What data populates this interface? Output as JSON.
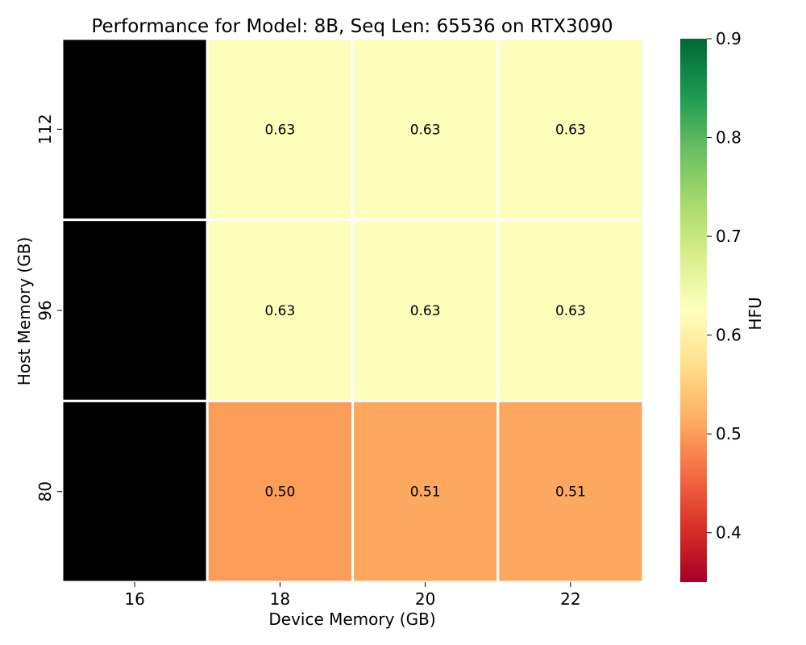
{
  "chart_data": {
    "type": "heatmap",
    "title": "Performance for Model: 8B, Seq Len: 65536 on RTX3090",
    "xlabel": "Device Memory (GB)",
    "ylabel": "Host Memory (GB)",
    "x_categories": [
      "16",
      "18",
      "20",
      "22"
    ],
    "y_categories": [
      "112",
      "96",
      "80"
    ],
    "values": [
      [
        null,
        0.63,
        0.63,
        0.63
      ],
      [
        null,
        0.63,
        0.63,
        0.63
      ],
      [
        null,
        0.5,
        0.51,
        0.51
      ]
    ],
    "missing_color": "#000000",
    "colorbar": {
      "label": "HFU",
      "range": [
        0.35,
        0.9
      ],
      "ticks": [
        "0.4",
        "0.5",
        "0.6",
        "0.7",
        "0.8",
        "0.9"
      ],
      "colormap": "RdYlGn"
    },
    "grid": false
  }
}
